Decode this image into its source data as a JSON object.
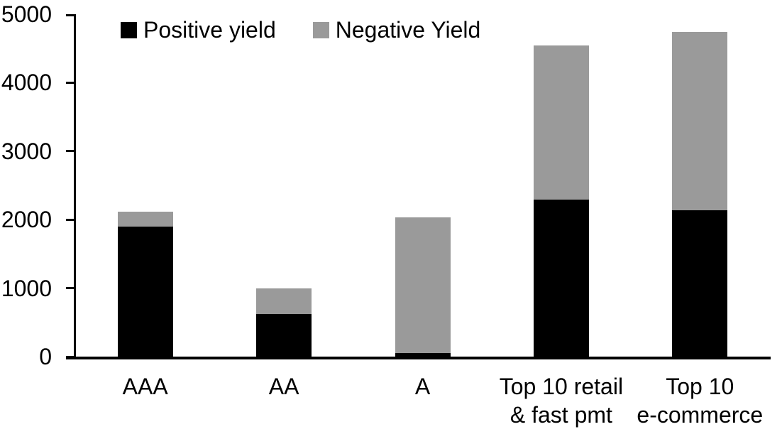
{
  "chart_data": {
    "type": "bar",
    "stacked": true,
    "title": "",
    "xlabel": "",
    "ylabel": "",
    "categories": [
      "AAA",
      "AA",
      "A",
      "Top 10 retail & fast pmt",
      "Top 10 e-commerce"
    ],
    "categories_wrapped": [
      [
        "AAA"
      ],
      [
        "AA"
      ],
      [
        "A"
      ],
      [
        "Top 10 retail",
        "& fast pmt"
      ],
      [
        "Top 10",
        "e-commerce"
      ]
    ],
    "series": [
      {
        "name": "Positive yield",
        "color": "#000000",
        "values": [
          1900,
          620,
          50,
          2290,
          2140
        ]
      },
      {
        "name": "Negative Yield",
        "color": "#9a9a9a",
        "values": [
          220,
          380,
          1980,
          2250,
          2600
        ]
      }
    ],
    "stack_totals": [
      2120,
      1000,
      2030,
      4540,
      4740
    ],
    "ylim": [
      0,
      5000
    ],
    "yticks": [
      0,
      1000,
      2000,
      3000,
      4000,
      5000
    ],
    "grid": false,
    "legend_position": "top-center",
    "axis_color": "#000000",
    "background_color": "#ffffff"
  }
}
